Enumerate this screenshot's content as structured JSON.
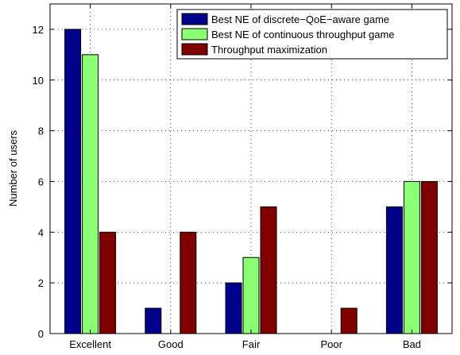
{
  "chart_data": {
    "type": "bar",
    "categories": [
      "Excellent",
      "Good",
      "Fair",
      "Poor",
      "Bad"
    ],
    "series": [
      {
        "name": "Best NE of discrete−QoE−aware game",
        "values": [
          12,
          1,
          2,
          0,
          5
        ],
        "color": "#00008b"
      },
      {
        "name": "Best NE of continuous throughput game",
        "values": [
          11,
          0,
          3,
          0,
          6
        ],
        "color": "#8aff73"
      },
      {
        "name": "Throughput maximization",
        "values": [
          4,
          4,
          5,
          1,
          6
        ],
        "color": "#800000"
      }
    ],
    "xlabel": "",
    "ylabel": "Number of users",
    "ylim": [
      0,
      13
    ],
    "yticks": [
      "0",
      "2",
      "4",
      "6",
      "8",
      "10",
      "12"
    ],
    "grid": true,
    "legend_position": "top-right"
  }
}
